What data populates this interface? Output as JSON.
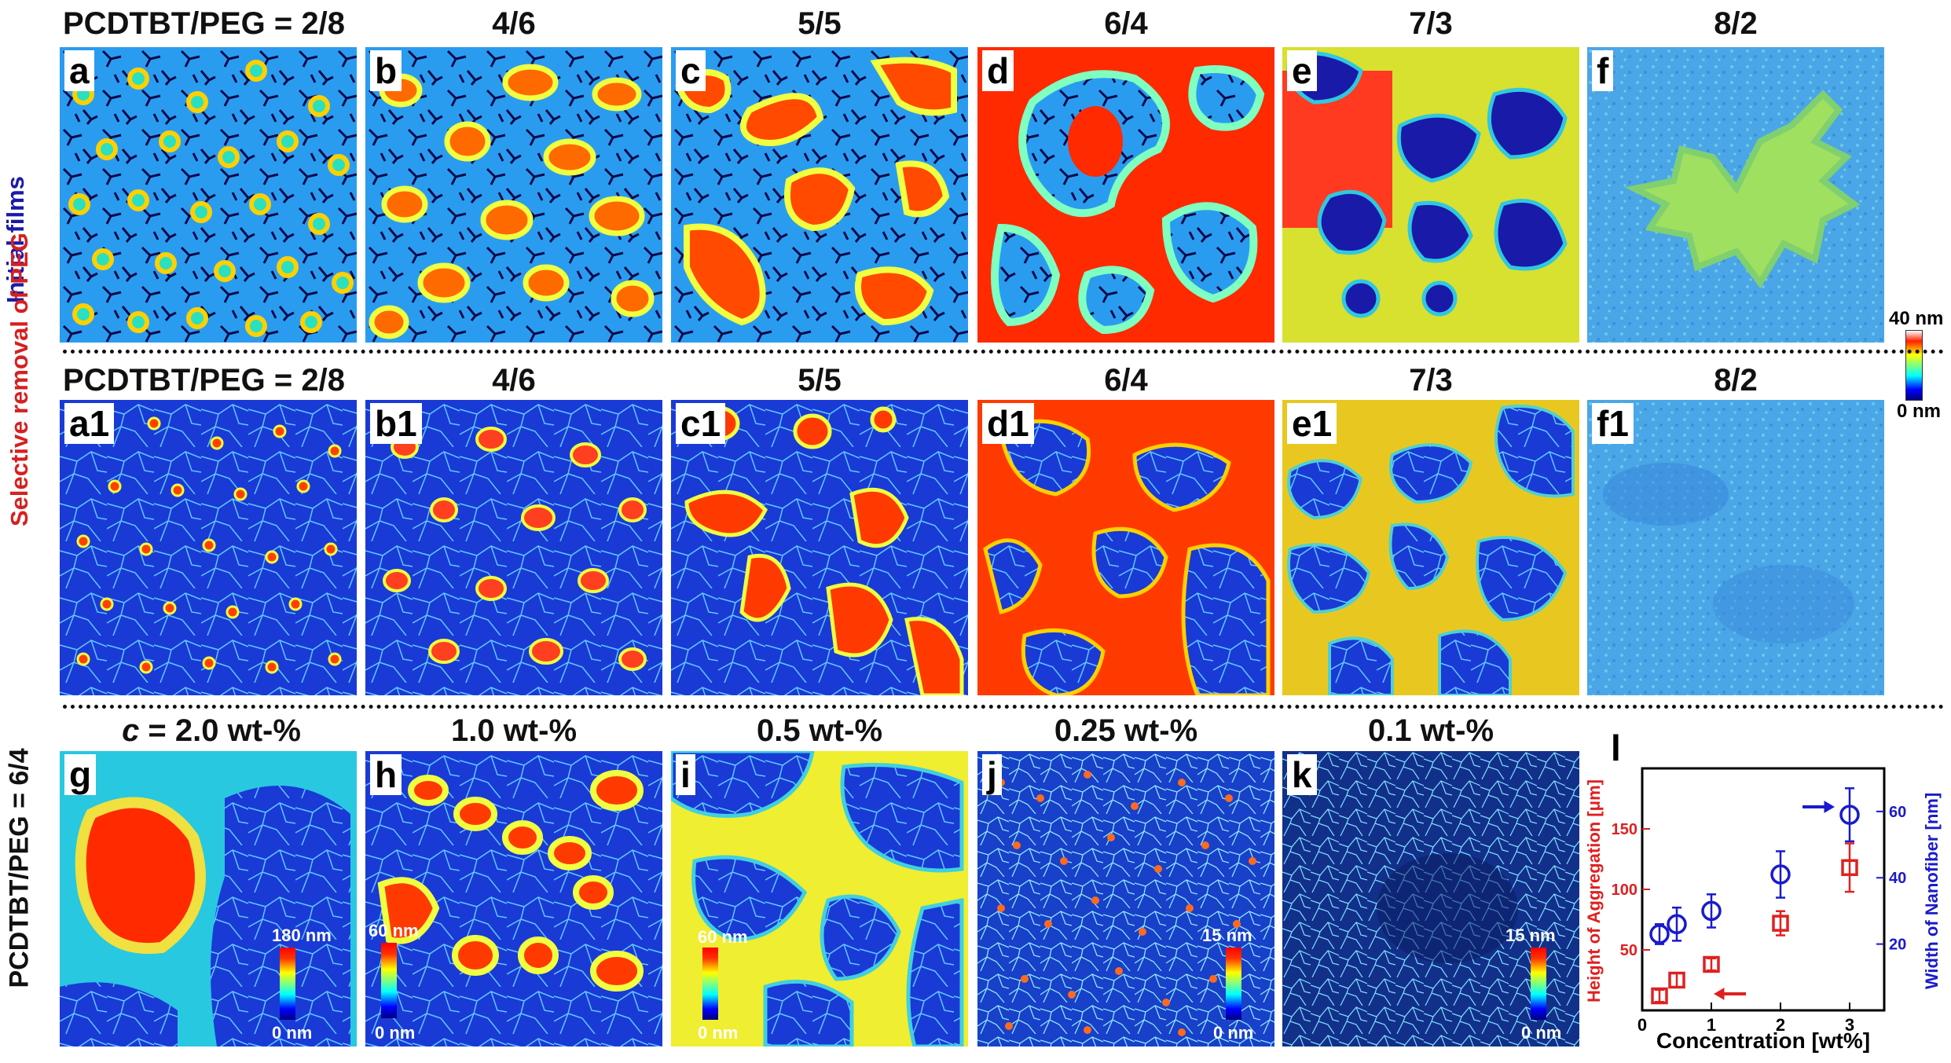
{
  "rows": [
    {
      "label": "Initial films",
      "label_color": "#1a1aa8"
    },
    {
      "label": "Selective removal of PEG",
      "label_color": "#d62020"
    },
    {
      "label": "PCDTBT/PEG = 6/4",
      "label_color": "#111111"
    }
  ],
  "row1_titles": [
    "PCDTBT/PEG = 2/8",
    "4/6",
    "5/5",
    "6/4",
    "7/3",
    "8/2"
  ],
  "row2_titles": [
    "PCDTBT/PEG = 2/8",
    "4/6",
    "5/5",
    "6/4",
    "7/3",
    "8/2"
  ],
  "row3_titles": {
    "g_italic": "c",
    "g_rest": " = 2.0 wt-%",
    "h": "1.0 wt-%",
    "i": "0.5 wt-%",
    "j": "0.25 wt-%",
    "k": "0.1 wt-%"
  },
  "panel_labels_row1": [
    "a",
    "b",
    "c",
    "d",
    "e",
    "f"
  ],
  "panel_labels_row2": [
    "a1",
    "b1",
    "c1",
    "d1",
    "e1",
    "f1"
  ],
  "panel_labels_row3": [
    "g",
    "h",
    "i",
    "j",
    "k"
  ],
  "shared_colorbar": {
    "top": "40 nm",
    "bottom": "0 nm"
  },
  "inset_colorbars": {
    "g": {
      "top": "180 nm",
      "bottom": "0 nm"
    },
    "h": {
      "top": "60 nm",
      "bottom": "0 nm"
    },
    "i": {
      "top": "60 nm",
      "bottom": "0 nm"
    },
    "j": {
      "top": "15 nm",
      "bottom": "0 nm"
    },
    "k": {
      "top": "15 nm",
      "bottom": "0 nm"
    }
  },
  "colors": {
    "jet_low": "#00007f",
    "jet_mid": "#7fff7f",
    "jet_high": "#ff0000",
    "height_series": "#e02020",
    "width_series": "#1a1acc"
  },
  "chart_data": {
    "type": "scatter",
    "panel_label": "l",
    "xlabel": "Concentration [wt%]",
    "ylabel_left": "Height of Aggregation [μm]",
    "ylabel_right": "Width of Nanofiber [nm]",
    "xlim": [
      0,
      3.5
    ],
    "ylim_left": [
      0,
      200
    ],
    "ylim_right": [
      0,
      73
    ],
    "x_ticks": [
      "0",
      "1",
      "2",
      "3"
    ],
    "y_left_ticks": [
      "50",
      "100",
      "150"
    ],
    "y_right_ticks": [
      "20",
      "40",
      "60"
    ],
    "series": [
      {
        "axis": "left",
        "marker": "square",
        "color": "#e02020",
        "x": [
          0.25,
          0.5,
          1.0,
          2.0,
          3.0
        ],
        "y": [
          12,
          25,
          38,
          72,
          118
        ],
        "err": [
          5,
          6,
          5,
          10,
          20
        ]
      },
      {
        "axis": "right",
        "marker": "circle",
        "color": "#1a1acc",
        "x": [
          0.25,
          0.5,
          1.0,
          2.0,
          3.0
        ],
        "y": [
          23,
          26,
          30,
          41,
          59
        ],
        "err": [
          3,
          5,
          5,
          7,
          8
        ]
      }
    ]
  }
}
